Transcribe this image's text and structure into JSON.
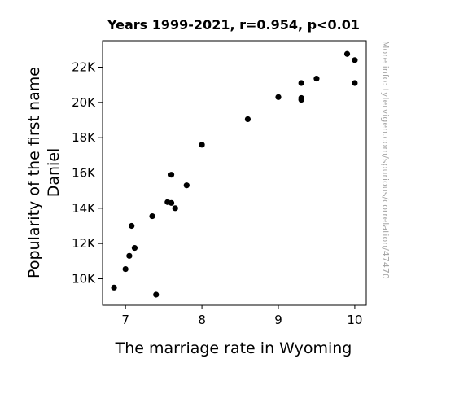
{
  "chart_data": {
    "type": "scatter",
    "title": "Years 1999-2021, r=0.954, p<0.01",
    "xlabel": "The marriage rate in Wyoming",
    "ylabel_lines": [
      "Popularity of the first name",
      "Daniel"
    ],
    "xlim": [
      6.7,
      10.15
    ],
    "ylim": [
      8500,
      23500
    ],
    "x_ticks": [
      7,
      8,
      9,
      10
    ],
    "x_tick_labels": [
      "7",
      "8",
      "9",
      "10"
    ],
    "y_ticks": [
      10000,
      12000,
      14000,
      16000,
      18000,
      20000,
      22000
    ],
    "y_tick_labels": [
      "10K",
      "12K",
      "14K",
      "16K",
      "18K",
      "20K",
      "22K"
    ],
    "grid": false,
    "marker_color": "#000000",
    "points": [
      {
        "x": 9.9,
        "y": 22750
      },
      {
        "x": 10.0,
        "y": 22400
      },
      {
        "x": 9.5,
        "y": 21350
      },
      {
        "x": 9.3,
        "y": 21100
      },
      {
        "x": 10.0,
        "y": 21100
      },
      {
        "x": 9.0,
        "y": 20300
      },
      {
        "x": 9.3,
        "y": 20250
      },
      {
        "x": 9.3,
        "y": 20150
      },
      {
        "x": 8.6,
        "y": 19050
      },
      {
        "x": 8.0,
        "y": 17600
      },
      {
        "x": 7.6,
        "y": 15900
      },
      {
        "x": 7.8,
        "y": 15300
      },
      {
        "x": 7.55,
        "y": 14350
      },
      {
        "x": 7.6,
        "y": 14300
      },
      {
        "x": 7.65,
        "y": 14000
      },
      {
        "x": 7.35,
        "y": 13550
      },
      {
        "x": 7.08,
        "y": 13000
      },
      {
        "x": 7.12,
        "y": 11750
      },
      {
        "x": 7.05,
        "y": 11300
      },
      {
        "x": 7.0,
        "y": 10550
      },
      {
        "x": 6.85,
        "y": 9500
      },
      {
        "x": 7.4,
        "y": 9100
      }
    ]
  },
  "side_note": "More info: tylervigen.com/spurious/correlation/47470"
}
